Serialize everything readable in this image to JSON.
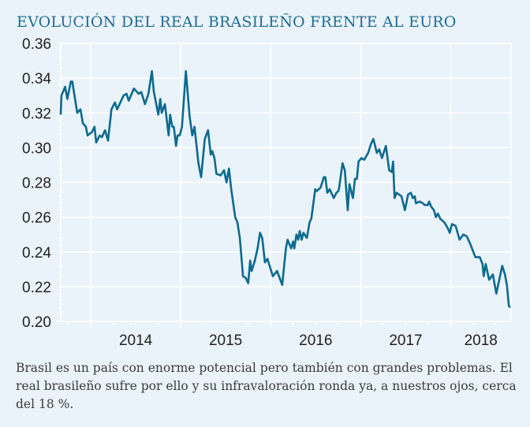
{
  "chart_data": {
    "type": "line",
    "title": "EVOLUCIÓN DEL REAL BRASILEÑO FRENTE AL EURO",
    "xlabel": "",
    "ylabel": "",
    "xlim": [
      "2013-09-01",
      "2018-09-03"
    ],
    "ylim": [
      0.2,
      0.36
    ],
    "yticks": [
      "0.36",
      "0.34",
      "0.32",
      "0.30",
      "0.28",
      "0.26",
      "0.24",
      "0.22",
      "0.20"
    ],
    "xticks": [
      "2014",
      "2015",
      "2016",
      "2017",
      "2018"
    ],
    "grid": true,
    "line_color": "#0b6a8f",
    "series": [
      {
        "x": [
          "2013-09-01",
          "2013-09-04",
          "2013-09-19",
          "2013-09-28",
          "2013-10-12",
          "2013-10-18",
          "2013-11-07",
          "2013-11-20",
          "2013-11-30",
          "2013-12-12",
          "2013-12-19",
          "2014-01-06",
          "2014-01-16",
          "2014-01-23",
          "2014-02-06",
          "2014-02-15",
          "2014-02-28",
          "2014-03-12",
          "2014-03-26",
          "2014-04-09",
          "2014-04-18",
          "2014-05-14",
          "2014-05-26",
          "2014-06-04",
          "2014-06-25",
          "2014-07-14",
          "2014-07-25",
          "2014-08-09",
          "2014-08-23",
          "2014-09-06",
          "2014-09-14",
          "2014-10-02",
          "2014-10-10",
          "2014-10-16",
          "2014-10-29",
          "2014-11-13",
          "2014-11-19",
          "2014-11-28",
          "2014-12-04",
          "2014-12-13",
          "2014-12-19",
          "2014-12-28",
          "2015-01-06",
          "2015-01-22",
          "2015-02-06",
          "2015-02-17",
          "2015-02-26",
          "2015-03-14",
          "2015-03-25",
          "2015-04-09",
          "2015-04-22",
          "2015-05-03",
          "2015-05-09",
          "2015-05-18",
          "2015-05-26",
          "2015-06-12",
          "2015-06-26",
          "2015-07-06",
          "2015-07-16",
          "2015-07-25",
          "2015-08-10",
          "2015-08-19",
          "2015-08-29",
          "2015-09-11",
          "2015-09-22",
          "2015-10-02",
          "2015-10-10",
          "2015-10-16",
          "2015-10-29",
          "2015-11-09",
          "2015-11-19",
          "2015-11-28",
          "2015-12-09",
          "2015-12-19",
          "2015-12-28",
          "2016-01-10",
          "2016-01-27",
          "2016-02-17",
          "2016-03-03",
          "2016-03-10",
          "2016-03-24",
          "2016-04-01",
          "2016-04-06",
          "2016-04-15",
          "2016-04-22",
          "2016-04-28",
          "2016-05-06",
          "2016-05-13",
          "2016-05-27",
          "2016-06-07",
          "2016-06-14",
          "2016-06-30",
          "2016-07-06",
          "2016-07-22",
          "2016-08-04",
          "2016-08-10",
          "2016-08-18",
          "2016-08-28",
          "2016-09-13",
          "2016-09-24",
          "2016-10-02",
          "2016-10-04",
          "2016-10-19",
          "2016-10-28",
          "2016-11-09",
          "2016-11-16",
          "2016-11-30",
          "2016-12-08",
          "2016-12-16",
          "2016-12-23",
          "2017-01-04",
          "2017-01-15",
          "2017-01-31",
          "2017-02-11",
          "2017-02-21",
          "2017-03-07",
          "2017-03-17",
          "2017-03-28",
          "2017-04-13",
          "2017-04-26",
          "2017-05-07",
          "2017-05-12",
          "2017-05-18",
          "2017-05-26",
          "2017-06-15",
          "2017-06-29",
          "2017-07-12",
          "2017-07-23",
          "2017-07-31",
          "2017-08-08",
          "2017-08-13",
          "2017-08-27",
          "2017-09-10",
          "2017-09-17",
          "2017-10-01",
          "2017-10-05",
          "2017-10-14",
          "2017-10-25",
          "2017-11-02",
          "2017-11-10",
          "2017-11-20",
          "2017-12-06",
          "2017-12-19",
          "2017-12-28",
          "2018-01-06",
          "2018-01-21",
          "2018-02-06",
          "2018-02-21",
          "2018-03-07",
          "2018-03-23",
          "2018-04-11",
          "2018-04-29",
          "2018-05-10",
          "2018-05-15",
          "2018-05-23",
          "2018-06-06",
          "2018-06-21",
          "2018-07-05",
          "2018-07-29",
          "2018-08-09",
          "2018-08-17",
          "2018-08-25",
          "2018-08-30"
        ],
        "y": [
          0.319,
          0.33,
          0.335,
          0.328,
          0.338,
          0.338,
          0.32,
          0.322,
          0.314,
          0.312,
          0.307,
          0.309,
          0.312,
          0.303,
          0.307,
          0.306,
          0.31,
          0.304,
          0.322,
          0.326,
          0.322,
          0.33,
          0.331,
          0.327,
          0.334,
          0.331,
          0.332,
          0.325,
          0.331,
          0.344,
          0.332,
          0.319,
          0.328,
          0.32,
          0.325,
          0.307,
          0.319,
          0.312,
          0.312,
          0.301,
          0.307,
          0.307,
          0.312,
          0.344,
          0.318,
          0.307,
          0.312,
          0.291,
          0.283,
          0.305,
          0.31,
          0.296,
          0.298,
          0.294,
          0.285,
          0.284,
          0.287,
          0.28,
          0.288,
          0.276,
          0.26,
          0.257,
          0.248,
          0.226,
          0.225,
          0.222,
          0.235,
          0.229,
          0.235,
          0.242,
          0.251,
          0.248,
          0.234,
          0.236,
          0.232,
          0.226,
          0.229,
          0.221,
          0.242,
          0.247,
          0.242,
          0.246,
          0.242,
          0.25,
          0.247,
          0.252,
          0.247,
          0.251,
          0.248,
          0.257,
          0.259,
          0.276,
          0.275,
          0.277,
          0.283,
          0.283,
          0.274,
          0.276,
          0.271,
          0.274,
          0.275,
          0.276,
          0.291,
          0.287,
          0.264,
          0.279,
          0.271,
          0.282,
          0.282,
          0.292,
          0.294,
          0.293,
          0.297,
          0.302,
          0.305,
          0.297,
          0.299,
          0.294,
          0.301,
          0.287,
          0.286,
          0.292,
          0.271,
          0.274,
          0.272,
          0.264,
          0.273,
          0.274,
          0.271,
          0.272,
          0.268,
          0.269,
          0.268,
          0.267,
          0.267,
          0.269,
          0.266,
          0.264,
          0.26,
          0.262,
          0.259,
          0.257,
          0.254,
          0.251,
          0.256,
          0.255,
          0.247,
          0.25,
          0.249,
          0.244,
          0.237,
          0.237,
          0.233,
          0.226,
          0.233,
          0.224,
          0.227,
          0.216,
          0.232,
          0.227,
          0.221,
          0.209,
          0.208
        ]
      }
    ]
  },
  "caption": "Brasil es un país con enorme potencial pero también con grandes problemas. El real brasileño sufre por ello y su infravaloración ronda ya, a nuestros ojos, cerca del 18 %."
}
